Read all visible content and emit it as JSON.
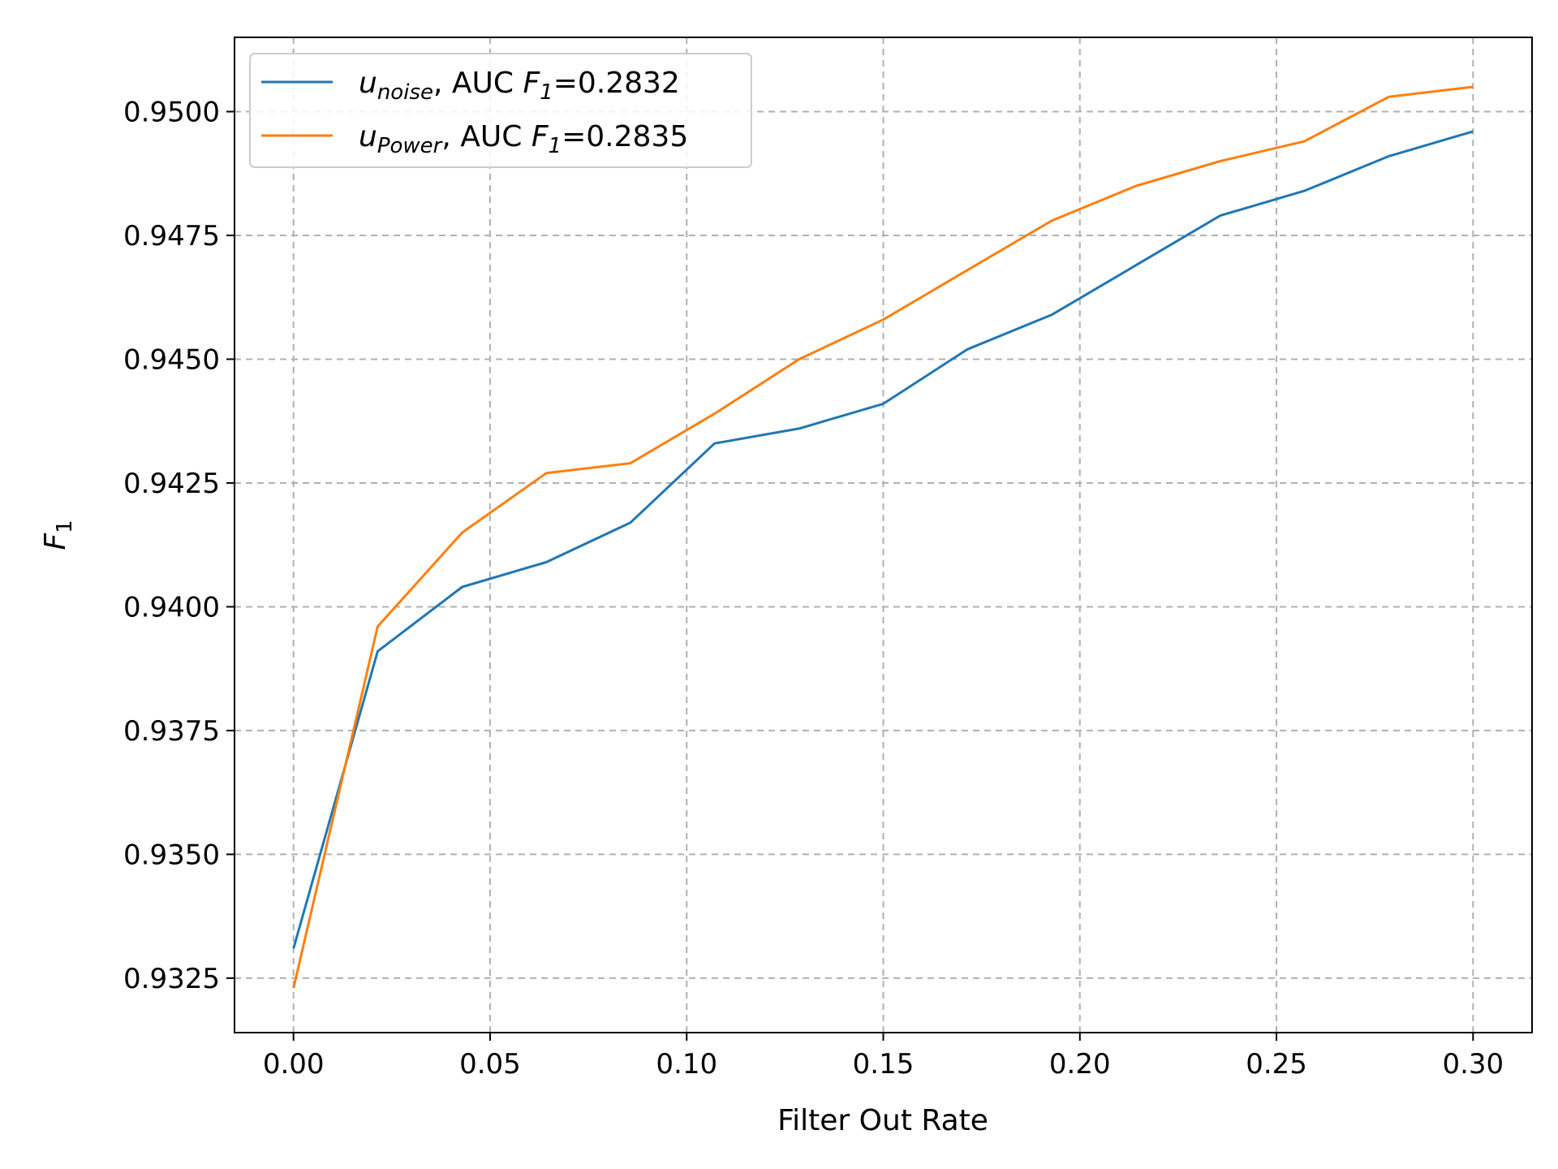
{
  "chart_data": {
    "type": "line",
    "xlabel": "Filter Out Rate",
    "ylabel": {
      "main": "F",
      "sub": "1"
    },
    "xlim": [
      -0.015,
      0.315
    ],
    "ylim": [
      0.9314,
      0.9515
    ],
    "xticks": [
      0.0,
      0.05,
      0.1,
      0.15,
      0.2,
      0.25,
      0.3
    ],
    "xtick_labels": [
      "0.00",
      "0.05",
      "0.10",
      "0.15",
      "0.20",
      "0.25",
      "0.30"
    ],
    "yticks": [
      0.9325,
      0.935,
      0.9375,
      0.94,
      0.9425,
      0.945,
      0.9475,
      0.95
    ],
    "ytick_labels": [
      "0.9325",
      "0.9350",
      "0.9375",
      "0.9400",
      "0.9425",
      "0.9450",
      "0.9475",
      "0.9500"
    ],
    "grid": true,
    "legend_position": "upper-left",
    "x": [
      0.0,
      0.0214,
      0.0429,
      0.0643,
      0.0857,
      0.1071,
      0.1286,
      0.15,
      0.1714,
      0.1929,
      0.2143,
      0.2357,
      0.2571,
      0.2786,
      0.3
    ],
    "series": [
      {
        "name_var": "u",
        "name_sub": "noise",
        "name_rest": ", AUC ",
        "name_f": "F",
        "name_f_sub": "1",
        "name_val": "=0.2832",
        "color": "#1f77b4",
        "values": [
          0.9331,
          0.9391,
          0.9404,
          0.9409,
          0.9417,
          0.9433,
          0.9436,
          0.9441,
          0.9452,
          0.9459,
          0.9469,
          0.9479,
          0.9484,
          0.9491,
          0.9496
        ]
      },
      {
        "name_var": "u",
        "name_sub": "Power",
        "name_rest": ", AUC ",
        "name_f": "F",
        "name_f_sub": "1",
        "name_val": "=0.2835",
        "color": "#ff7f0e",
        "values": [
          0.9323,
          0.9396,
          0.9415,
          0.9427,
          0.9429,
          0.9439,
          0.945,
          0.9458,
          0.9468,
          0.9478,
          0.9485,
          0.949,
          0.9494,
          0.9503,
          0.9505
        ]
      }
    ]
  }
}
